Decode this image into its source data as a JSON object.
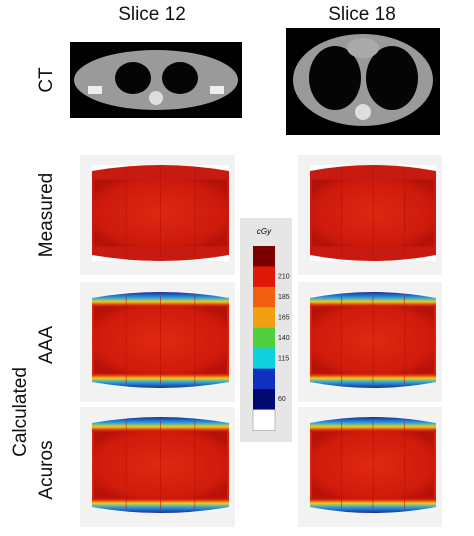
{
  "columns": [
    "Slice 12",
    "Slice 18"
  ],
  "rows": [
    "CT",
    "Measured",
    "AAA",
    "Acuros"
  ],
  "group_label": "Calculated",
  "colorbar": {
    "unit": "cGy",
    "ticks": [
      "210",
      "185",
      "165",
      "140",
      "115",
      "60"
    ]
  }
}
